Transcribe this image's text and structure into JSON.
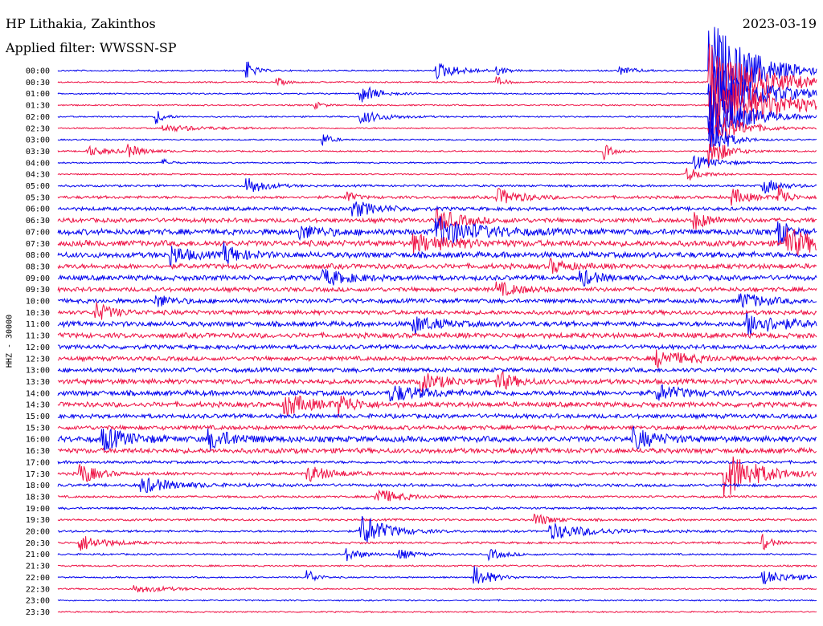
{
  "header": {
    "station": "HP Lithakia, Zakinthos",
    "filter": "Applied filter: WWSSN-SP",
    "date": "2023-03-19"
  },
  "chart_data": {
    "type": "line",
    "title": "HP Lithakia, Zakinthos",
    "subtitle": "Applied filter: WWSSN-SP",
    "date": "2023-03-19",
    "ylabel": "HHZ - 30000",
    "xlabel": "",
    "grid": false,
    "trace_colors": [
      "#0000ee",
      "#ee1144"
    ],
    "rows": [
      "00:00",
      "00:30",
      "01:00",
      "01:30",
      "02:00",
      "02:30",
      "03:00",
      "03:30",
      "04:00",
      "04:30",
      "05:00",
      "05:30",
      "06:00",
      "06:30",
      "07:00",
      "07:30",
      "08:00",
      "08:30",
      "09:00",
      "09:30",
      "10:00",
      "10:30",
      "11:00",
      "11:30",
      "12:00",
      "12:30",
      "13:00",
      "13:30",
      "14:00",
      "14:30",
      "15:00",
      "15:30",
      "16:00",
      "16:30",
      "17:00",
      "17:30",
      "18:00",
      "18:30",
      "19:00",
      "19:30",
      "20:00",
      "20:30",
      "21:00",
      "21:30",
      "22:00",
      "22:30",
      "23:00",
      "23:30"
    ],
    "noise_level": [
      1,
      1,
      1,
      1,
      1,
      1,
      1,
      1,
      1,
      1,
      1.5,
      2,
      2.5,
      3,
      4,
      4,
      4,
      3.5,
      3.5,
      3,
      3,
      3,
      3.5,
      3.5,
      3,
      3,
      3,
      3.5,
      3.5,
      3.5,
      3,
      3,
      4,
      3.5,
      2,
      2,
      2,
      1.5,
      1.5,
      1.5,
      1.5,
      1.5,
      1.2,
      1.2,
      1,
      1,
      1,
      1
    ],
    "events": [
      {
        "row": 0,
        "t": 0.25,
        "amp": 12,
        "dur": 0.01
      },
      {
        "row": 0,
        "t": 0.5,
        "amp": 10,
        "dur": 0.03
      },
      {
        "row": 0,
        "t": 0.58,
        "amp": 5,
        "dur": 0.01
      },
      {
        "row": 0,
        "t": 0.74,
        "amp": 5,
        "dur": 0.02
      },
      {
        "row": 0,
        "t": 0.86,
        "amp": 65,
        "dur": 0.05
      },
      {
        "row": 1,
        "t": 0.29,
        "amp": 5,
        "dur": 0.01
      },
      {
        "row": 1,
        "t": 0.58,
        "amp": 6,
        "dur": 0.01
      },
      {
        "row": 1,
        "t": 0.86,
        "amp": 50,
        "dur": 0.06
      },
      {
        "row": 2,
        "t": 0.4,
        "amp": 12,
        "dur": 0.02
      },
      {
        "row": 2,
        "t": 0.86,
        "amp": 40,
        "dur": 0.06
      },
      {
        "row": 3,
        "t": 0.34,
        "amp": 4,
        "dur": 0.01
      },
      {
        "row": 3,
        "t": 0.86,
        "amp": 45,
        "dur": 0.07
      },
      {
        "row": 4,
        "t": 0.13,
        "amp": 9,
        "dur": 0.01
      },
      {
        "row": 4,
        "t": 0.4,
        "amp": 8,
        "dur": 0.03
      },
      {
        "row": 4,
        "t": 0.86,
        "amp": 40,
        "dur": 0.04
      },
      {
        "row": 5,
        "t": 0.14,
        "amp": 4,
        "dur": 0.05
      },
      {
        "row": 5,
        "t": 0.86,
        "amp": 30,
        "dur": 0.03
      },
      {
        "row": 6,
        "t": 0.35,
        "amp": 8,
        "dur": 0.01
      },
      {
        "row": 6,
        "t": 0.86,
        "amp": 25,
        "dur": 0.02
      },
      {
        "row": 7,
        "t": 0.04,
        "amp": 6,
        "dur": 0.03
      },
      {
        "row": 7,
        "t": 0.09,
        "amp": 8,
        "dur": 0.02
      },
      {
        "row": 7,
        "t": 0.72,
        "amp": 10,
        "dur": 0.01
      },
      {
        "row": 7,
        "t": 0.86,
        "amp": 20,
        "dur": 0.02
      },
      {
        "row": 8,
        "t": 0.14,
        "amp": 4,
        "dur": 0.01
      },
      {
        "row": 8,
        "t": 0.84,
        "amp": 8,
        "dur": 0.03
      },
      {
        "row": 9,
        "t": 0.83,
        "amp": 8,
        "dur": 0.02
      },
      {
        "row": 10,
        "t": 0.25,
        "amp": 12,
        "dur": 0.02
      },
      {
        "row": 10,
        "t": 0.93,
        "amp": 10,
        "dur": 0.02
      },
      {
        "row": 11,
        "t": 0.38,
        "amp": 8,
        "dur": 0.01
      },
      {
        "row": 11,
        "t": 0.58,
        "amp": 10,
        "dur": 0.03
      },
      {
        "row": 11,
        "t": 0.89,
        "amp": 10,
        "dur": 0.02
      },
      {
        "row": 11,
        "t": 0.95,
        "amp": 18,
        "dur": 0.01
      },
      {
        "row": 12,
        "t": 0.39,
        "amp": 10,
        "dur": 0.03
      },
      {
        "row": 13,
        "t": 0.5,
        "amp": 14,
        "dur": 0.03
      },
      {
        "row": 13,
        "t": 0.84,
        "amp": 10,
        "dur": 0.02
      },
      {
        "row": 14,
        "t": 0.32,
        "amp": 8,
        "dur": 0.03
      },
      {
        "row": 14,
        "t": 0.5,
        "amp": 18,
        "dur": 0.05
      },
      {
        "row": 14,
        "t": 0.95,
        "amp": 20,
        "dur": 0.01
      },
      {
        "row": 15,
        "t": 0.47,
        "amp": 10,
        "dur": 0.05
      },
      {
        "row": 15,
        "t": 0.96,
        "amp": 18,
        "dur": 0.04
      },
      {
        "row": 16,
        "t": 0.15,
        "amp": 12,
        "dur": 0.02
      },
      {
        "row": 16,
        "t": 0.22,
        "amp": 12,
        "dur": 0.02
      },
      {
        "row": 17,
        "t": 0.65,
        "amp": 8,
        "dur": 0.02
      },
      {
        "row": 18,
        "t": 0.35,
        "amp": 10,
        "dur": 0.03
      },
      {
        "row": 18,
        "t": 0.69,
        "amp": 10,
        "dur": 0.02
      },
      {
        "row": 19,
        "t": 0.58,
        "amp": 8,
        "dur": 0.03
      },
      {
        "row": 20,
        "t": 0.13,
        "amp": 8,
        "dur": 0.02
      },
      {
        "row": 20,
        "t": 0.9,
        "amp": 10,
        "dur": 0.03
      },
      {
        "row": 21,
        "t": 0.05,
        "amp": 12,
        "dur": 0.02
      },
      {
        "row": 22,
        "t": 0.47,
        "amp": 10,
        "dur": 0.03
      },
      {
        "row": 22,
        "t": 0.91,
        "amp": 14,
        "dur": 0.04
      },
      {
        "row": 25,
        "t": 0.79,
        "amp": 10,
        "dur": 0.04
      },
      {
        "row": 27,
        "t": 0.48,
        "amp": 10,
        "dur": 0.03
      },
      {
        "row": 27,
        "t": 0.58,
        "amp": 12,
        "dur": 0.02
      },
      {
        "row": 28,
        "t": 0.44,
        "amp": 10,
        "dur": 0.04
      },
      {
        "row": 28,
        "t": 0.79,
        "amp": 10,
        "dur": 0.03
      },
      {
        "row": 29,
        "t": 0.3,
        "amp": 14,
        "dur": 0.03
      },
      {
        "row": 29,
        "t": 0.37,
        "amp": 12,
        "dur": 0.02
      },
      {
        "row": 32,
        "t": 0.06,
        "amp": 14,
        "dur": 0.03
      },
      {
        "row": 32,
        "t": 0.2,
        "amp": 12,
        "dur": 0.03
      },
      {
        "row": 32,
        "t": 0.76,
        "amp": 12,
        "dur": 0.03
      },
      {
        "row": 35,
        "t": 0.03,
        "amp": 14,
        "dur": 0.02
      },
      {
        "row": 35,
        "t": 0.33,
        "amp": 10,
        "dur": 0.03
      },
      {
        "row": 35,
        "t": 0.88,
        "amp": 30,
        "dur": 0.04
      },
      {
        "row": 36,
        "t": 0.11,
        "amp": 10,
        "dur": 0.04
      },
      {
        "row": 37,
        "t": 0.42,
        "amp": 10,
        "dur": 0.03
      },
      {
        "row": 39,
        "t": 0.63,
        "amp": 8,
        "dur": 0.02
      },
      {
        "row": 40,
        "t": 0.4,
        "amp": 22,
        "dur": 0.03
      },
      {
        "row": 40,
        "t": 0.65,
        "amp": 10,
        "dur": 0.05
      },
      {
        "row": 41,
        "t": 0.03,
        "amp": 10,
        "dur": 0.03
      },
      {
        "row": 41,
        "t": 0.93,
        "amp": 10,
        "dur": 0.01
      },
      {
        "row": 42,
        "t": 0.38,
        "amp": 8,
        "dur": 0.02
      },
      {
        "row": 42,
        "t": 0.45,
        "amp": 6,
        "dur": 0.02
      },
      {
        "row": 42,
        "t": 0.57,
        "amp": 6,
        "dur": 0.02
      },
      {
        "row": 44,
        "t": 0.33,
        "amp": 10,
        "dur": 0.01
      },
      {
        "row": 44,
        "t": 0.55,
        "amp": 14,
        "dur": 0.02
      },
      {
        "row": 44,
        "t": 0.93,
        "amp": 8,
        "dur": 0.04
      },
      {
        "row": 45,
        "t": 0.1,
        "amp": 5,
        "dur": 0.04
      }
    ]
  }
}
